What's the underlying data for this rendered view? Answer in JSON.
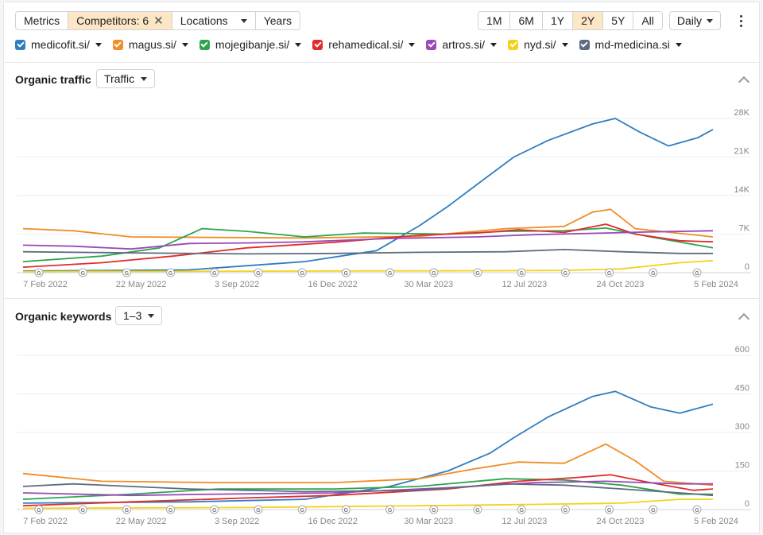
{
  "toolbar": {
    "metrics": "Metrics",
    "competitors": "Competitors: 6",
    "locations": "Locations",
    "years": "Years",
    "ranges": [
      "1M",
      "6M",
      "1Y",
      "2Y",
      "5Y",
      "All"
    ],
    "active_range": "2Y",
    "interval": "Daily"
  },
  "colors": {
    "medicofit.si/": "#2f7ec1",
    "magus.si/": "#ef8d26",
    "mojegibanje.si/": "#2ea44f",
    "rehamedical.si/": "#e02c2c",
    "artros.si/": "#9a49b6",
    "nyd.si/": "#f4d21c",
    "md-medicina.si": "#5d6b80",
    "active_bg": "#fde6c6"
  },
  "legend": [
    {
      "name": "medicofit.si/"
    },
    {
      "name": "magus.si/"
    },
    {
      "name": "mojegibanje.si/"
    },
    {
      "name": "rehamedical.si/"
    },
    {
      "name": "artros.si/"
    },
    {
      "name": "nyd.si/"
    },
    {
      "name": "md-medicina.si"
    }
  ],
  "traffic_section": {
    "title": "Organic traffic",
    "dropdown": "Traffic"
  },
  "keywords_section": {
    "title": "Organic keywords",
    "dropdown": "1–3"
  },
  "chart_data": [
    {
      "type": "line",
      "x_tick_labels": [
        "7 Feb 2022",
        "22 May 2022",
        "3 Sep 2022",
        "16 Dec 2022",
        "30 Mar 2023",
        "12 Jul 2023",
        "24 Oct 2023",
        "5 Feb 2024"
      ],
      "y_tick_labels": [
        "28K",
        "21K",
        "14K",
        "7K",
        "0"
      ],
      "ylim": [
        0,
        28000
      ],
      "grid": true,
      "google_update_markers": 16,
      "series": [
        {
          "name": "medicofit.si/",
          "points": [
            [
              "2022-02-07",
              300
            ],
            [
              "2022-08-01",
              500
            ],
            [
              "2022-12-01",
              2000
            ],
            [
              "2023-02-15",
              4000
            ],
            [
              "2023-04-01",
              8500
            ],
            [
              "2023-05-01",
              12000
            ],
            [
              "2023-06-01",
              16000
            ],
            [
              "2023-07-10",
              21000
            ],
            [
              "2023-08-15",
              24000
            ],
            [
              "2023-10-01",
              27000
            ],
            [
              "2023-10-25",
              28000
            ],
            [
              "2023-11-20",
              25500
            ],
            [
              "2023-12-20",
              23000
            ],
            [
              "2024-01-20",
              24500
            ],
            [
              "2024-02-05",
              26000
            ]
          ]
        },
        {
          "name": "magus.si/",
          "points": [
            [
              "2022-02-07",
              8000
            ],
            [
              "2022-04-01",
              7600
            ],
            [
              "2022-06-01",
              6500
            ],
            [
              "2022-09-01",
              6400
            ],
            [
              "2022-12-01",
              6300
            ],
            [
              "2023-04-01",
              6600
            ],
            [
              "2023-07-01",
              8000
            ],
            [
              "2023-09-01",
              8400
            ],
            [
              "2023-10-01",
              11000
            ],
            [
              "2023-10-20",
              11500
            ],
            [
              "2023-11-15",
              8000
            ],
            [
              "2024-02-05",
              6500
            ]
          ]
        },
        {
          "name": "mojegibanje.si/",
          "points": [
            [
              "2022-02-07",
              2000
            ],
            [
              "2022-05-01",
              3000
            ],
            [
              "2022-07-01",
              4500
            ],
            [
              "2022-08-15",
              8000
            ],
            [
              "2022-10-01",
              7500
            ],
            [
              "2022-12-01",
              6500
            ],
            [
              "2023-02-01",
              7200
            ],
            [
              "2023-05-01",
              7000
            ],
            [
              "2023-07-01",
              7500
            ],
            [
              "2023-09-01",
              7600
            ],
            [
              "2023-10-15",
              8100
            ],
            [
              "2023-12-01",
              6500
            ],
            [
              "2024-02-05",
              4500
            ]
          ]
        },
        {
          "name": "rehamedical.si/",
          "points": [
            [
              "2022-02-07",
              1000
            ],
            [
              "2022-05-01",
              1800
            ],
            [
              "2022-07-15",
              3000
            ],
            [
              "2022-10-01",
              4500
            ],
            [
              "2023-01-01",
              5500
            ],
            [
              "2023-04-01",
              6800
            ],
            [
              "2023-06-01",
              7200
            ],
            [
              "2023-07-15",
              7800
            ],
            [
              "2023-09-01",
              7300
            ],
            [
              "2023-10-15",
              8800
            ],
            [
              "2023-11-15",
              7000
            ],
            [
              "2024-01-01",
              5800
            ],
            [
              "2024-02-05",
              5600
            ]
          ]
        },
        {
          "name": "artros.si/",
          "points": [
            [
              "2022-02-07",
              5000
            ],
            [
              "2022-04-01",
              4800
            ],
            [
              "2022-06-01",
              4300
            ],
            [
              "2022-08-01",
              5300
            ],
            [
              "2022-10-01",
              5400
            ],
            [
              "2022-12-01",
              5600
            ],
            [
              "2023-03-01",
              6200
            ],
            [
              "2023-06-01",
              6500
            ],
            [
              "2023-08-01",
              6900
            ],
            [
              "2023-10-15",
              7200
            ],
            [
              "2023-12-01",
              7400
            ],
            [
              "2024-02-05",
              7600
            ]
          ]
        },
        {
          "name": "nyd.si/",
          "points": [
            [
              "2022-02-07",
              200
            ],
            [
              "2022-08-01",
              250
            ],
            [
              "2023-01-01",
              300
            ],
            [
              "2023-06-01",
              350
            ],
            [
              "2023-09-01",
              400
            ],
            [
              "2023-11-01",
              700
            ],
            [
              "2024-01-01",
              1800
            ],
            [
              "2024-02-05",
              2200
            ]
          ]
        },
        {
          "name": "md-medicina.si",
          "points": [
            [
              "2022-02-07",
              3800
            ],
            [
              "2022-06-01",
              3600
            ],
            [
              "2022-10-01",
              3400
            ],
            [
              "2023-01-01",
              3500
            ],
            [
              "2023-04-01",
              3700
            ],
            [
              "2023-07-01",
              3800
            ],
            [
              "2023-09-01",
              4200
            ],
            [
              "2023-11-01",
              3800
            ],
            [
              "2024-01-01",
              3500
            ],
            [
              "2024-02-05",
              3500
            ]
          ]
        }
      ]
    },
    {
      "type": "line",
      "x_tick_labels": [
        "7 Feb 2022",
        "22 May 2022",
        "3 Sep 2022",
        "16 Dec 2022",
        "30 Mar 2023",
        "12 Jul 2023",
        "24 Oct 2023",
        "5 Feb 2024"
      ],
      "y_tick_labels": [
        "600",
        "450",
        "300",
        "150",
        "0"
      ],
      "ylim": [
        0,
        600
      ],
      "grid": true,
      "google_update_markers": 16,
      "series": [
        {
          "name": "medicofit.si/",
          "points": [
            [
              "2022-02-07",
              25
            ],
            [
              "2022-08-01",
              30
            ],
            [
              "2022-12-01",
              40
            ],
            [
              "2023-03-01",
              90
            ],
            [
              "2023-05-01",
              150
            ],
            [
              "2023-06-15",
              220
            ],
            [
              "2023-07-10",
              280
            ],
            [
              "2023-08-15",
              360
            ],
            [
              "2023-10-01",
              440
            ],
            [
              "2023-10-25",
              460
            ],
            [
              "2023-12-01",
              400
            ],
            [
              "2024-01-01",
              375
            ],
            [
              "2024-02-05",
              410
            ]
          ]
        },
        {
          "name": "magus.si/",
          "points": [
            [
              "2022-02-07",
              140
            ],
            [
              "2022-05-01",
              110
            ],
            [
              "2022-09-01",
              105
            ],
            [
              "2023-01-01",
              105
            ],
            [
              "2023-04-01",
              120
            ],
            [
              "2023-06-01",
              160
            ],
            [
              "2023-07-15",
              185
            ],
            [
              "2023-09-01",
              180
            ],
            [
              "2023-10-15",
              255
            ],
            [
              "2023-11-15",
              190
            ],
            [
              "2023-12-15",
              110
            ],
            [
              "2024-02-05",
              95
            ]
          ]
        },
        {
          "name": "mojegibanje.si/",
          "points": [
            [
              "2022-02-07",
              40
            ],
            [
              "2022-06-01",
              60
            ],
            [
              "2022-09-01",
              80
            ],
            [
              "2023-01-01",
              80
            ],
            [
              "2023-04-01",
              90
            ],
            [
              "2023-07-01",
              120
            ],
            [
              "2023-09-01",
              115
            ],
            [
              "2023-11-01",
              95
            ],
            [
              "2024-01-01",
              60
            ],
            [
              "2024-02-05",
              60
            ]
          ]
        },
        {
          "name": "rehamedical.si/",
          "points": [
            [
              "2022-02-07",
              15
            ],
            [
              "2022-06-01",
              30
            ],
            [
              "2022-10-01",
              45
            ],
            [
              "2023-01-01",
              55
            ],
            [
              "2023-05-01",
              80
            ],
            [
              "2023-07-15",
              110
            ],
            [
              "2023-09-15",
              125
            ],
            [
              "2023-10-20",
              135
            ],
            [
              "2023-12-01",
              105
            ],
            [
              "2024-01-15",
              75
            ],
            [
              "2024-02-05",
              80
            ]
          ]
        },
        {
          "name": "artros.si/",
          "points": [
            [
              "2022-02-07",
              65
            ],
            [
              "2022-06-01",
              55
            ],
            [
              "2022-09-01",
              60
            ],
            [
              "2023-01-01",
              65
            ],
            [
              "2023-05-01",
              85
            ],
            [
              "2023-08-01",
              105
            ],
            [
              "2023-10-15",
              110
            ],
            [
              "2024-01-01",
              100
            ],
            [
              "2024-02-05",
              100
            ]
          ]
        },
        {
          "name": "nyd.si/",
          "points": [
            [
              "2022-02-07",
              5
            ],
            [
              "2022-10-01",
              8
            ],
            [
              "2023-04-01",
              15
            ],
            [
              "2023-08-01",
              20
            ],
            [
              "2023-11-01",
              25
            ],
            [
              "2024-01-01",
              40
            ],
            [
              "2024-02-05",
              40
            ]
          ]
        },
        {
          "name": "md-medicina.si",
          "points": [
            [
              "2022-02-07",
              90
            ],
            [
              "2022-04-01",
              100
            ],
            [
              "2022-08-01",
              80
            ],
            [
              "2022-12-01",
              70
            ],
            [
              "2023-04-01",
              75
            ],
            [
              "2023-07-01",
              100
            ],
            [
              "2023-09-01",
              95
            ],
            [
              "2023-11-01",
              80
            ],
            [
              "2024-01-01",
              65
            ],
            [
              "2024-02-05",
              55
            ]
          ]
        }
      ]
    }
  ]
}
